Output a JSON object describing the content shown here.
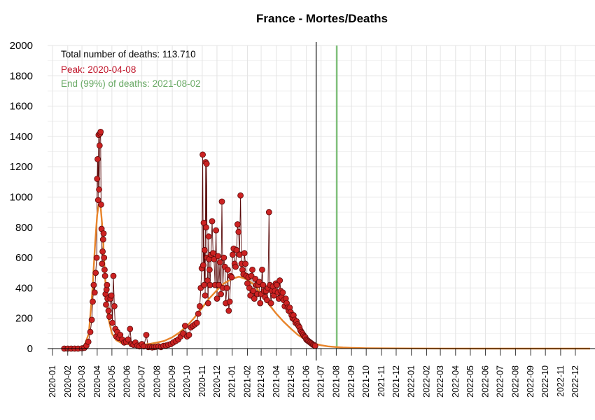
{
  "chart_data": {
    "type": "line",
    "title": "France - Mortes/Deaths",
    "xlabel": "",
    "ylabel": "",
    "ylim": [
      0,
      2000
    ],
    "xlim": [
      "2019-12-22",
      "2023-01-10"
    ],
    "yticks": [
      0,
      200,
      400,
      600,
      800,
      1000,
      1200,
      1400,
      1600,
      1800,
      2000
    ],
    "xticks": [
      "2020-01",
      "2020-02",
      "2020-03",
      "2020-04",
      "2020-05",
      "2020-06",
      "2020-07",
      "2020-08",
      "2020-09",
      "2020-10",
      "2020-11",
      "2020-12",
      "2021-01",
      "2021-02",
      "2021-03",
      "2021-04",
      "2021-05",
      "2021-06",
      "2021-07",
      "2021-08",
      "2021-09",
      "2021-10",
      "2021-11",
      "2021-12",
      "2022-01",
      "2022-02",
      "2022-03",
      "2022-04",
      "2022-05",
      "2022-06",
      "2022-07",
      "2022-08",
      "2022-09",
      "2022-10",
      "2022-11",
      "2022-12"
    ],
    "grid": true,
    "colors": {
      "points_fill": "#cc2222",
      "points_stroke": "#5a0a0a",
      "daily_line": "#5a0a0a",
      "fit_line": "#e8842a",
      "end_line": "#7fbf7b",
      "peak_text": "#c0152a",
      "end_text": "#6aaa66",
      "today_line": "#000000"
    },
    "annotations": {
      "total": "Total number of deaths: 113.710",
      "peak": "Peak: 2020-04-08",
      "end": "End (99%) of deaths: 2021-08-02"
    },
    "vlines": [
      {
        "label": "current-date",
        "x": "2021-06-21"
      },
      {
        "label": "end-99",
        "x": "2021-08-02"
      }
    ],
    "series": [
      {
        "role": "daily-deaths",
        "points": [
          [
            "2020-01-25",
            0
          ],
          [
            "2020-02-01",
            0
          ],
          [
            "2020-02-08",
            0
          ],
          [
            "2020-02-15",
            0
          ],
          [
            "2020-02-22",
            0
          ],
          [
            "2020-03-01",
            2
          ],
          [
            "2020-03-06",
            5
          ],
          [
            "2020-03-10",
            20
          ],
          [
            "2020-03-14",
            45
          ],
          [
            "2020-03-18",
            110
          ],
          [
            "2020-03-21",
            190
          ],
          [
            "2020-03-23",
            310
          ],
          [
            "2020-03-25",
            420
          ],
          [
            "2020-03-27",
            370
          ],
          [
            "2020-03-29",
            500
          ],
          [
            "2020-03-31",
            600
          ],
          [
            "2020-04-01",
            1120
          ],
          [
            "2020-04-02",
            1250
          ],
          [
            "2020-04-03",
            980
          ],
          [
            "2020-04-04",
            1410
          ],
          [
            "2020-04-05",
            1050
          ],
          [
            "2020-04-06",
            1340
          ],
          [
            "2020-04-07",
            1420
          ],
          [
            "2020-04-08",
            1430
          ],
          [
            "2020-04-09",
            950
          ],
          [
            "2020-04-10",
            790
          ],
          [
            "2020-04-11",
            560
          ],
          [
            "2020-04-12",
            640
          ],
          [
            "2020-04-13",
            720
          ],
          [
            "2020-04-14",
            760
          ],
          [
            "2020-04-15",
            600
          ],
          [
            "2020-04-16",
            520
          ],
          [
            "2020-04-17",
            480
          ],
          [
            "2020-04-18",
            360
          ],
          [
            "2020-04-19",
            290
          ],
          [
            "2020-04-20",
            390
          ],
          [
            "2020-04-21",
            420
          ],
          [
            "2020-04-22",
            330
          ],
          [
            "2020-04-24",
            250
          ],
          [
            "2020-04-26",
            210
          ],
          [
            "2020-04-28",
            330
          ],
          [
            "2020-04-30",
            350
          ],
          [
            "2020-05-02",
            170
          ],
          [
            "2020-05-04",
            480
          ],
          [
            "2020-05-06",
            280
          ],
          [
            "2020-05-08",
            130
          ],
          [
            "2020-05-10",
            80
          ],
          [
            "2020-05-12",
            110
          ],
          [
            "2020-05-15",
            70
          ],
          [
            "2020-05-18",
            90
          ],
          [
            "2020-05-22",
            60
          ],
          [
            "2020-05-26",
            40
          ],
          [
            "2020-05-30",
            45
          ],
          [
            "2020-06-03",
            60
          ],
          [
            "2020-06-07",
            130
          ],
          [
            "2020-06-10",
            30
          ],
          [
            "2020-06-14",
            25
          ],
          [
            "2020-06-18",
            40
          ],
          [
            "2020-06-22",
            20
          ],
          [
            "2020-06-26",
            15
          ],
          [
            "2020-07-01",
            30
          ],
          [
            "2020-07-05",
            15
          ],
          [
            "2020-07-10",
            90
          ],
          [
            "2020-07-14",
            10
          ],
          [
            "2020-07-18",
            12
          ],
          [
            "2020-07-22",
            8
          ],
          [
            "2020-07-26",
            10
          ],
          [
            "2020-07-30",
            12
          ],
          [
            "2020-08-04",
            15
          ],
          [
            "2020-08-09",
            10
          ],
          [
            "2020-08-14",
            18
          ],
          [
            "2020-08-19",
            20
          ],
          [
            "2020-08-24",
            25
          ],
          [
            "2020-08-29",
            30
          ],
          [
            "2020-09-03",
            40
          ],
          [
            "2020-09-08",
            50
          ],
          [
            "2020-09-13",
            60
          ],
          [
            "2020-09-18",
            80
          ],
          [
            "2020-09-23",
            100
          ],
          [
            "2020-09-27",
            150
          ],
          [
            "2020-10-01",
            80
          ],
          [
            "2020-10-05",
            90
          ],
          [
            "2020-10-09",
            140
          ],
          [
            "2020-10-13",
            150
          ],
          [
            "2020-10-17",
            160
          ],
          [
            "2020-10-21",
            170
          ],
          [
            "2020-10-24",
            230
          ],
          [
            "2020-10-27",
            280
          ],
          [
            "2020-10-29",
            400
          ],
          [
            "2020-10-31",
            530
          ],
          [
            "2020-11-02",
            1280
          ],
          [
            "2020-11-03",
            550
          ],
          [
            "2020-11-04",
            830
          ],
          [
            "2020-11-05",
            420
          ],
          [
            "2020-11-06",
            650
          ],
          [
            "2020-11-07",
            350
          ],
          [
            "2020-11-08",
            1230
          ],
          [
            "2020-11-09",
            800
          ],
          [
            "2020-11-10",
            1220
          ],
          [
            "2020-11-11",
            600
          ],
          [
            "2020-11-12",
            450
          ],
          [
            "2020-11-13",
            300
          ],
          [
            "2020-11-14",
            740
          ],
          [
            "2020-11-15",
            590
          ],
          [
            "2020-11-16",
            520
          ],
          [
            "2020-11-17",
            420
          ],
          [
            "2020-11-19",
            620
          ],
          [
            "2020-11-21",
            840
          ],
          [
            "2020-11-23",
            630
          ],
          [
            "2020-11-25",
            590
          ],
          [
            "2020-11-27",
            420
          ],
          [
            "2020-11-29",
            780
          ],
          [
            "2020-12-01",
            330
          ],
          [
            "2020-12-03",
            610
          ],
          [
            "2020-12-05",
            420
          ],
          [
            "2020-12-07",
            570
          ],
          [
            "2020-12-09",
            360
          ],
          [
            "2020-12-11",
            970
          ],
          [
            "2020-12-13",
            400
          ],
          [
            "2020-12-15",
            600
          ],
          [
            "2020-12-17",
            540
          ],
          [
            "2020-12-19",
            300
          ],
          [
            "2020-12-21",
            400
          ],
          [
            "2020-12-23",
            520
          ],
          [
            "2020-12-25",
            250
          ],
          [
            "2020-12-27",
            310
          ],
          [
            "2020-12-29",
            480
          ],
          [
            "2020-12-31",
            470
          ],
          [
            "2021-01-02",
            620
          ],
          [
            "2021-01-04",
            660
          ],
          [
            "2021-01-06",
            560
          ],
          [
            "2021-01-08",
            540
          ],
          [
            "2021-01-10",
            650
          ],
          [
            "2021-01-12",
            820
          ],
          [
            "2021-01-14",
            770
          ],
          [
            "2021-01-16",
            620
          ],
          [
            "2021-01-18",
            1010
          ],
          [
            "2021-01-20",
            560
          ],
          [
            "2021-01-22",
            520
          ],
          [
            "2021-01-24",
            490
          ],
          [
            "2021-01-26",
            630
          ],
          [
            "2021-01-28",
            560
          ],
          [
            "2021-01-30",
            480
          ],
          [
            "2021-02-01",
            430
          ],
          [
            "2021-02-03",
            470
          ],
          [
            "2021-02-05",
            400
          ],
          [
            "2021-02-07",
            350
          ],
          [
            "2021-02-09",
            480
          ],
          [
            "2021-02-11",
            520
          ],
          [
            "2021-02-13",
            380
          ],
          [
            "2021-02-15",
            330
          ],
          [
            "2021-02-17",
            460
          ],
          [
            "2021-02-19",
            420
          ],
          [
            "2021-02-21",
            360
          ],
          [
            "2021-02-23",
            420
          ],
          [
            "2021-02-25",
            440
          ],
          [
            "2021-02-27",
            300
          ],
          [
            "2021-03-01",
            360
          ],
          [
            "2021-03-03",
            520
          ],
          [
            "2021-03-05",
            420
          ],
          [
            "2021-03-07",
            380
          ],
          [
            "2021-03-09",
            340
          ],
          [
            "2021-03-11",
            380
          ],
          [
            "2021-03-13",
            320
          ],
          [
            "2021-03-15",
            400
          ],
          [
            "2021-03-17",
            900
          ],
          [
            "2021-03-19",
            420
          ],
          [
            "2021-03-21",
            300
          ],
          [
            "2021-03-23",
            380
          ],
          [
            "2021-03-25",
            410
          ],
          [
            "2021-03-27",
            350
          ],
          [
            "2021-03-29",
            380
          ],
          [
            "2021-03-31",
            430
          ],
          [
            "2021-04-02",
            420
          ],
          [
            "2021-04-04",
            370
          ],
          [
            "2021-04-06",
            330
          ],
          [
            "2021-04-08",
            450
          ],
          [
            "2021-04-10",
            380
          ],
          [
            "2021-04-12",
            340
          ],
          [
            "2021-04-14",
            370
          ],
          [
            "2021-04-16",
            320
          ],
          [
            "2021-04-18",
            280
          ],
          [
            "2021-04-20",
            330
          ],
          [
            "2021-04-22",
            300
          ],
          [
            "2021-04-24",
            270
          ],
          [
            "2021-04-26",
            250
          ],
          [
            "2021-04-28",
            270
          ],
          [
            "2021-04-30",
            240
          ],
          [
            "2021-05-02",
            220
          ],
          [
            "2021-05-04",
            200
          ],
          [
            "2021-05-06",
            220
          ],
          [
            "2021-05-08",
            190
          ],
          [
            "2021-05-10",
            170
          ],
          [
            "2021-05-12",
            180
          ],
          [
            "2021-05-14",
            160
          ],
          [
            "2021-05-16",
            150
          ],
          [
            "2021-05-18",
            140
          ],
          [
            "2021-05-20",
            120
          ],
          [
            "2021-05-22",
            110
          ],
          [
            "2021-05-24",
            100
          ],
          [
            "2021-05-26",
            90
          ],
          [
            "2021-05-28",
            80
          ],
          [
            "2021-05-30",
            75
          ],
          [
            "2021-06-01",
            60
          ],
          [
            "2021-06-03",
            55
          ],
          [
            "2021-06-05",
            50
          ],
          [
            "2021-06-07",
            45
          ],
          [
            "2021-06-09",
            40
          ],
          [
            "2021-06-11",
            35
          ],
          [
            "2021-06-13",
            30
          ],
          [
            "2021-06-15",
            25
          ],
          [
            "2021-06-17",
            22
          ],
          [
            "2021-06-19",
            18
          ]
        ]
      },
      {
        "role": "fit",
        "points": [
          [
            "2020-01-20",
            0
          ],
          [
            "2020-02-20",
            0
          ],
          [
            "2020-03-05",
            10
          ],
          [
            "2020-03-15",
            100
          ],
          [
            "2020-03-22",
            370
          ],
          [
            "2020-03-28",
            700
          ],
          [
            "2020-04-01",
            880
          ],
          [
            "2020-04-04",
            950
          ],
          [
            "2020-04-08",
            940
          ],
          [
            "2020-04-12",
            780
          ],
          [
            "2020-04-17",
            470
          ],
          [
            "2020-04-23",
            210
          ],
          [
            "2020-05-01",
            100
          ],
          [
            "2020-05-10",
            55
          ],
          [
            "2020-05-20",
            38
          ],
          [
            "2020-06-01",
            30
          ],
          [
            "2020-06-15",
            25
          ],
          [
            "2020-07-01",
            25
          ],
          [
            "2020-07-15",
            30
          ],
          [
            "2020-08-01",
            40
          ],
          [
            "2020-08-15",
            50
          ],
          [
            "2020-09-01",
            75
          ],
          [
            "2020-09-15",
            105
          ],
          [
            "2020-10-01",
            150
          ],
          [
            "2020-10-15",
            200
          ],
          [
            "2020-11-01",
            270
          ],
          [
            "2020-11-15",
            330
          ],
          [
            "2020-12-01",
            385
          ],
          [
            "2020-12-15",
            430
          ],
          [
            "2021-01-01",
            460
          ],
          [
            "2021-01-15",
            475
          ],
          [
            "2021-02-01",
            455
          ],
          [
            "2021-02-15",
            420
          ],
          [
            "2021-03-01",
            360
          ],
          [
            "2021-03-15",
            300
          ],
          [
            "2021-04-01",
            230
          ],
          [
            "2021-04-15",
            180
          ],
          [
            "2021-05-01",
            130
          ],
          [
            "2021-05-15",
            90
          ],
          [
            "2021-06-01",
            55
          ],
          [
            "2021-06-15",
            35
          ],
          [
            "2021-07-01",
            22
          ],
          [
            "2021-07-15",
            15
          ],
          [
            "2021-08-01",
            10
          ],
          [
            "2021-08-15",
            7
          ],
          [
            "2021-09-01",
            5
          ],
          [
            "2021-10-01",
            3
          ],
          [
            "2021-11-01",
            2
          ],
          [
            "2022-01-01",
            1
          ],
          [
            "2022-06-01",
            0
          ],
          [
            "2022-12-31",
            0
          ]
        ]
      }
    ]
  }
}
